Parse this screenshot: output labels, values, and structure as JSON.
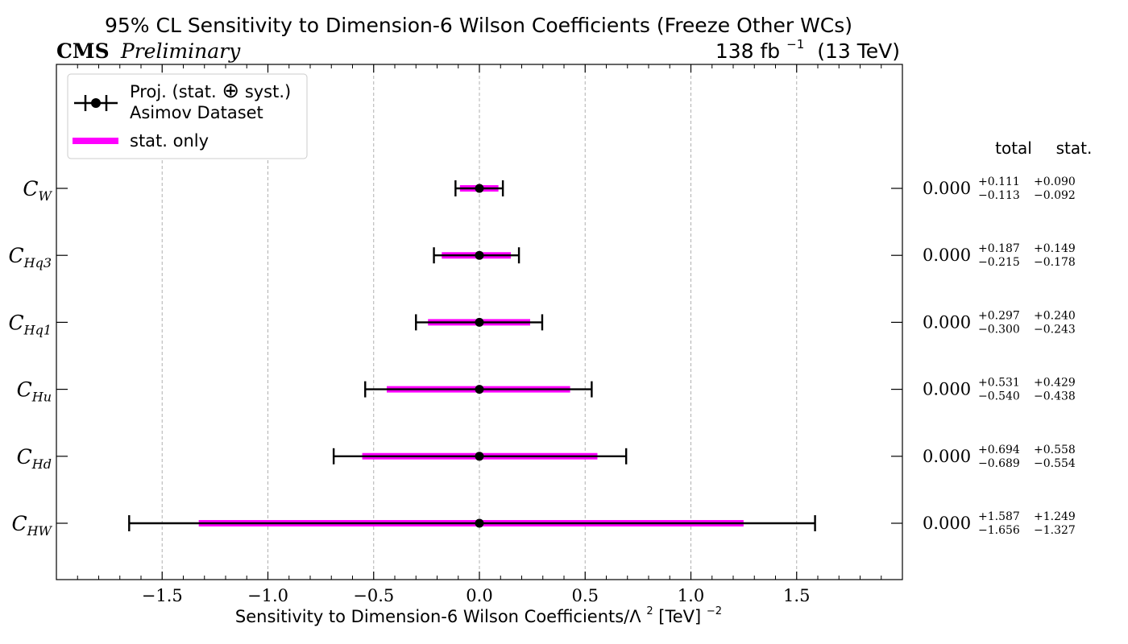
{
  "chart_data": {
    "type": "errorbar",
    "title": "95% CL Sensitivity to Dimension-6 Wilson Coefficients (Freeze Other WCs)",
    "experiment": "CMS",
    "status": "Preliminary",
    "lumi": {
      "value": "138 fb",
      "exp": "−1",
      "energy": "(13 TeV)"
    },
    "xlabel": {
      "main": "Sensitivity to Dimension-6 Wilson Coefficients/Λ",
      "sq": "2",
      "unit": " [TeV]",
      "unit_exp": "−2"
    },
    "xlim": [
      -2.0,
      2.0
    ],
    "xticks": [
      -1.5,
      -1.0,
      -0.5,
      0.0,
      0.5,
      1.0,
      1.5
    ],
    "xtick_labels": [
      "−1.5",
      "−1.0",
      "−0.5",
      "0.0",
      "0.5",
      "1.0",
      "1.5"
    ],
    "grid": "vertical dashed at major ticks",
    "legend": {
      "placement": "upper-left",
      "entries": [
        {
          "line1": "Proj. (stat. ",
          "symbol": "⊕",
          "line1b": " syst.)",
          "line2": "Asimov Dataset"
        },
        {
          "line1": "stat. only"
        }
      ]
    },
    "colors": {
      "total": "#000000",
      "stat": "#ff00ff",
      "grid": "#b0b0b0"
    },
    "column_headers": {
      "total": "total",
      "stat": "stat."
    },
    "coefficients": [
      {
        "label": "C",
        "sub": "W",
        "value": 0.0,
        "value_label": "0.000",
        "total_up": 0.111,
        "total_down": -0.113,
        "stat_up": 0.09,
        "stat_down": -0.092,
        "total_up_label": "+0.111",
        "total_down_label": "−0.113",
        "stat_up_label": "+0.090",
        "stat_down_label": "−0.092"
      },
      {
        "label": "C",
        "sub": "Hq3",
        "value": 0.0,
        "value_label": "0.000",
        "total_up": 0.187,
        "total_down": -0.215,
        "stat_up": 0.149,
        "stat_down": -0.178,
        "total_up_label": "+0.187",
        "total_down_label": "−0.215",
        "stat_up_label": "+0.149",
        "stat_down_label": "−0.178"
      },
      {
        "label": "C",
        "sub": "Hq1",
        "value": 0.0,
        "value_label": "0.000",
        "total_up": 0.297,
        "total_down": -0.3,
        "stat_up": 0.24,
        "stat_down": -0.243,
        "total_up_label": "+0.297",
        "total_down_label": "−0.300",
        "stat_up_label": "+0.240",
        "stat_down_label": "−0.243"
      },
      {
        "label": "C",
        "sub": "Hu",
        "value": 0.0,
        "value_label": "0.000",
        "total_up": 0.531,
        "total_down": -0.54,
        "stat_up": 0.429,
        "stat_down": -0.438,
        "total_up_label": "+0.531",
        "total_down_label": "−0.540",
        "stat_up_label": "+0.429",
        "stat_down_label": "−0.438"
      },
      {
        "label": "C",
        "sub": "Hd",
        "value": 0.0,
        "value_label": "0.000",
        "total_up": 0.694,
        "total_down": -0.689,
        "stat_up": 0.558,
        "stat_down": -0.554,
        "total_up_label": "+0.694",
        "total_down_label": "−0.689",
        "stat_up_label": "+0.558",
        "stat_down_label": "−0.554"
      },
      {
        "label": "C",
        "sub": "HW",
        "value": 0.0,
        "value_label": "0.000",
        "total_up": 1.587,
        "total_down": -1.656,
        "stat_up": 1.249,
        "stat_down": -1.327,
        "total_up_label": "+1.587",
        "total_down_label": "−1.656",
        "stat_up_label": "+1.249",
        "stat_down_label": "−1.327"
      }
    ]
  }
}
